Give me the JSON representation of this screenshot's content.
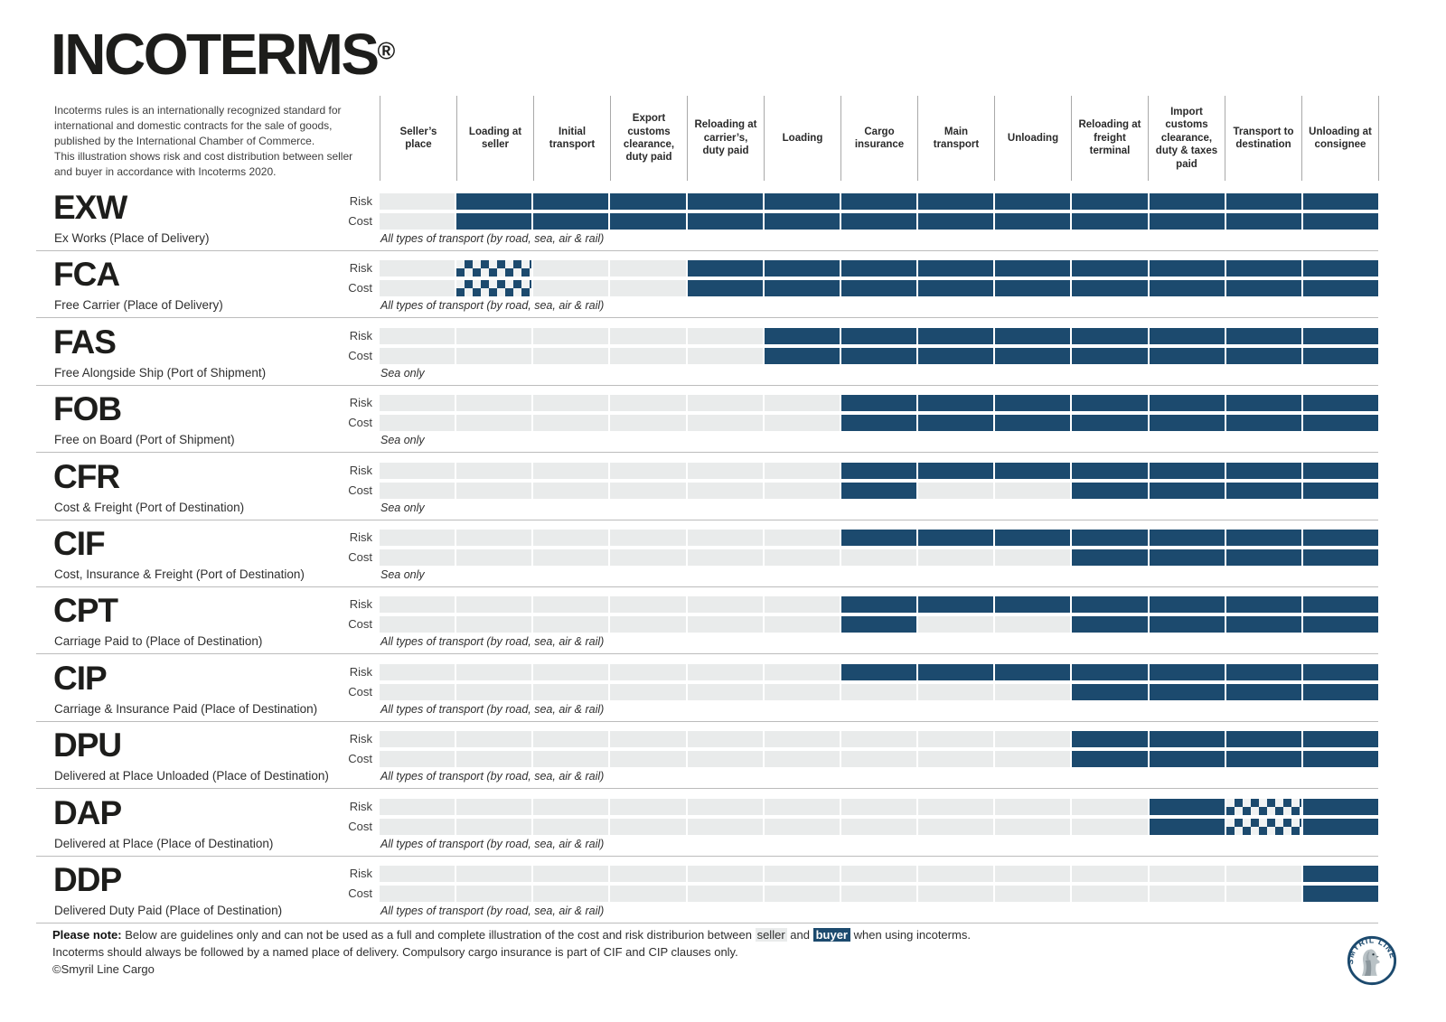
{
  "title": {
    "text": "INCOTERMS",
    "mark": "®"
  },
  "intro": "Incoterms rules is an internationally recognized standard for international and domestic contracts for the sale of goods, published by the International Chamber of Commerce.\nThis illustration shows risk and cost distribution between seller and buyer in accordance with Incoterms 2020.",
  "labels": {
    "risk": "Risk",
    "cost": "Cost"
  },
  "colors": {
    "buyer_navy": "#1c4a6e",
    "seller_gray": "#e9ebeb",
    "divider_gray": "#a9a9a9"
  },
  "chart_data": {
    "type": "heatmap",
    "legend": {
      "s": "seller (light gray)",
      "b": "buyer (navy)",
      "x": "checkered / either party depending on named place"
    },
    "columns": [
      "Seller’s place",
      "Loading at seller",
      "Initial transport",
      "Export customs clearance, duty paid",
      "Reloading at carrier’s, duty paid",
      "Loading",
      "Cargo insurance",
      "Main transport",
      "Unloading",
      "Reloading at freight terminal",
      "Import customs clearance, duty & taxes paid",
      "Transport to destination",
      "Unloading at consignee"
    ],
    "rows": [
      {
        "code": "EXW",
        "name": "Ex Works (Place of Delivery)",
        "transport": "All types of transport (by road, sea, air & rail)",
        "risk": "sbbbbbbbbbbbb",
        "cost": "sbbbbbbbbbbbb"
      },
      {
        "code": "FCA",
        "name": "Free Carrier (Place of Delivery)",
        "transport": "All types of transport (by road, sea, air & rail)",
        "risk": "sxssbbbbbbbbb",
        "cost": "sxssbbbbbbbbb"
      },
      {
        "code": "FAS",
        "name": "Free Alongside Ship (Port of Shipment)",
        "transport": "Sea only",
        "risk": "sssssbbbbbbbb",
        "cost": "sssssbbbbbbbb"
      },
      {
        "code": "FOB",
        "name": "Free on Board (Port of Shipment)",
        "transport": "Sea only",
        "risk": "ssssssbbbbbbb",
        "cost": "ssssssbbbbbbb"
      },
      {
        "code": "CFR",
        "name": "Cost & Freight (Port of Destination)",
        "transport": "Sea only",
        "risk": "ssssssbbbbbbb",
        "cost": "ssssssbssbbbb"
      },
      {
        "code": "CIF",
        "name": "Cost, Insurance & Freight (Port of Destination)",
        "transport": "Sea only",
        "risk": "ssssssbbbbbbb",
        "cost": "sssssssssbbbb"
      },
      {
        "code": "CPT",
        "name": "Carriage Paid to (Place of Destination)",
        "transport": "All types of transport (by road, sea, air & rail)",
        "risk": "ssssssbbbbbbb",
        "cost": "ssssssbssbbbb"
      },
      {
        "code": "CIP",
        "name": "Carriage & Insurance Paid (Place of Destination)",
        "transport": "All types of transport (by road, sea, air & rail)",
        "risk": "ssssssbbbbbbb",
        "cost": "sssssssssbbbb"
      },
      {
        "code": "DPU",
        "name": "Delivered at Place Unloaded (Place of Destination)",
        "transport": "All types of transport (by road, sea, air & rail)",
        "risk": "sssssssssbbbb",
        "cost": "sssssssssbbbb"
      },
      {
        "code": "DAP",
        "name": "Delivered at Place (Place of Destination)",
        "transport": "All types of transport (by road, sea, air & rail)",
        "risk": "ssssssssssbxb",
        "cost": "ssssssssssbxb"
      },
      {
        "code": "DDP",
        "name": "Delivered Duty Paid (Place of Destination)",
        "transport": "All types of transport (by road, sea, air & rail)",
        "risk": "ssssssssssssb",
        "cost": "ssssssssssssb"
      }
    ]
  },
  "note": {
    "bold_label": "Please note:",
    "line1_a": " Below are guidelines only and can not be used as a full and complete illustration of the cost and risk distriburion between ",
    "seller_word": "seller",
    "line1_mid": " and ",
    "buyer_word": "buyer",
    "line1_b": " when using incoterms.",
    "line2": "Incoterms should always be followed by a named place of delivery. Compulsory cargo insurance is part of CIF and CIP clauses only.",
    "copyright": "©Smyril Line Cargo"
  },
  "logo": {
    "text": "SMYRIL LINE"
  }
}
